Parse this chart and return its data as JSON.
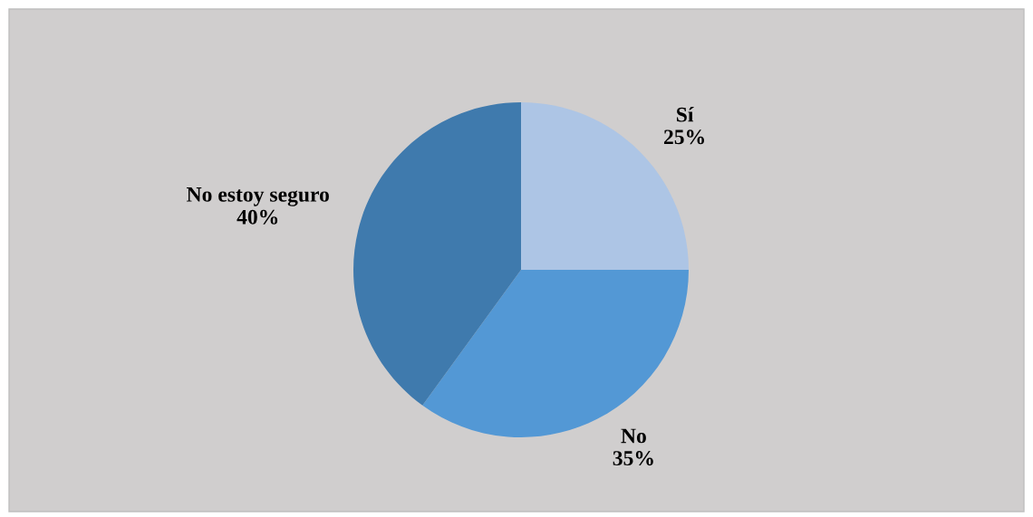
{
  "chart_data": {
    "type": "pie",
    "categories": [
      "Sí",
      "No",
      "No estoy seguro"
    ],
    "values": [
      25,
      35,
      40
    ],
    "value_labels": [
      "25%",
      "35%",
      "40%"
    ],
    "colors": [
      "#adc5e5",
      "#5398d5",
      "#3f7aad"
    ]
  }
}
